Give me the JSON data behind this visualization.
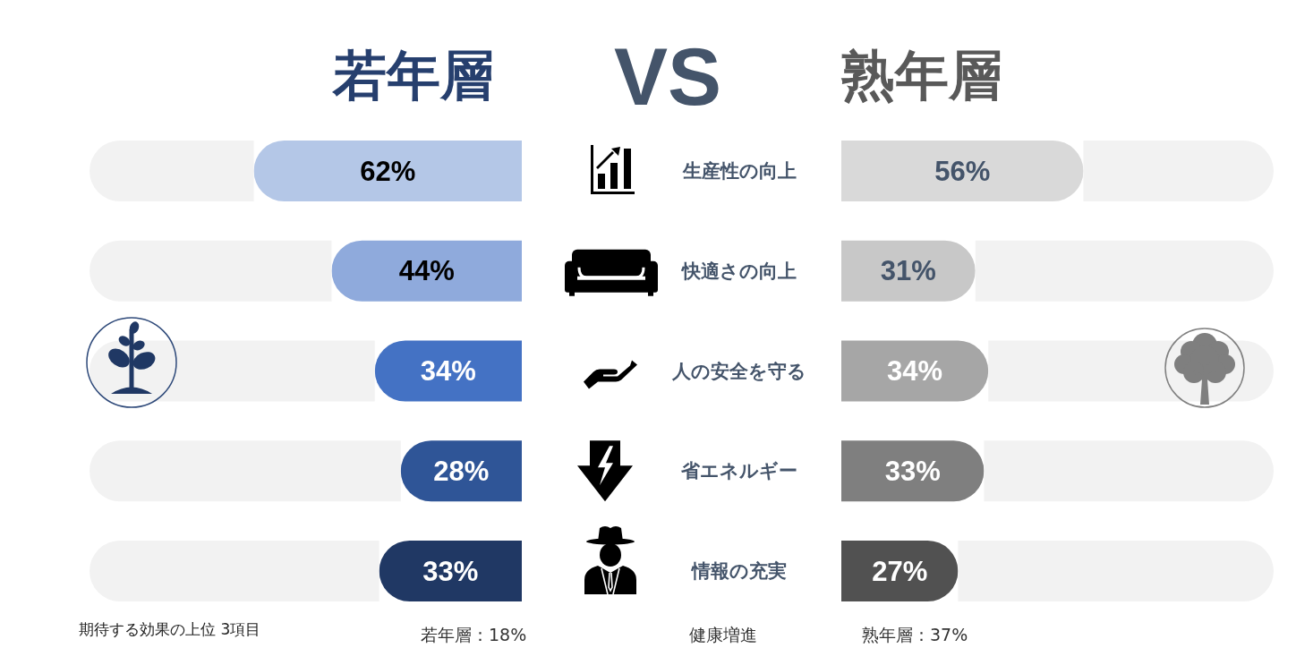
{
  "chart_data": [
    {
      "type": "bar",
      "title": "若年層",
      "orientation": "horizontal",
      "stacked": true,
      "tick_labels": false,
      "xlim": [
        100,
        0
      ],
      "categories": [
        "生産性の向上",
        "快適さの向上",
        "人の安全を守る",
        "省エネルギー",
        "情報の充実"
      ],
      "series": [
        {
          "colors": [
            "#b4c7e7",
            "#8faadc",
            "#4472c4",
            "#2f5597",
            "#203864"
          ],
          "values": [
            62,
            44,
            34,
            28,
            33
          ],
          "value_labels": [
            "62%",
            "44%",
            "34%",
            "28%",
            "33%"
          ]
        },
        {
          "color": "#f2f2f2",
          "values": [
            38,
            56,
            66,
            72,
            67
          ]
        }
      ]
    },
    {
      "type": "bar",
      "title": "熟年層",
      "orientation": "horizontal",
      "stacked": true,
      "xlim": [
        0,
        100
      ],
      "categories": [
        "生産性の向上",
        "快適さの向上",
        "人の安全を守る",
        "省エネルギー",
        "情報の充実"
      ],
      "series": [
        {
          "colors": [
            "#d9d9d9",
            "#c8c8c8",
            "#a6a6a6",
            "#7f7f7f",
            "#515151"
          ],
          "values": [
            56,
            31,
            34,
            33,
            27
          ],
          "value_labels": [
            "56%",
            "31%",
            "34%",
            "33%",
            "27%"
          ]
        },
        {
          "color": "#f2f2f2",
          "values": [
            44,
            69,
            66,
            67,
            73
          ]
        }
      ]
    },
    {
      "type": "other",
      "annotations": [
        "VS",
        "期待する効果の上位 3項目",
        "若年層：18%",
        "健康増進",
        "熟年層：37%"
      ]
    }
  ]
}
